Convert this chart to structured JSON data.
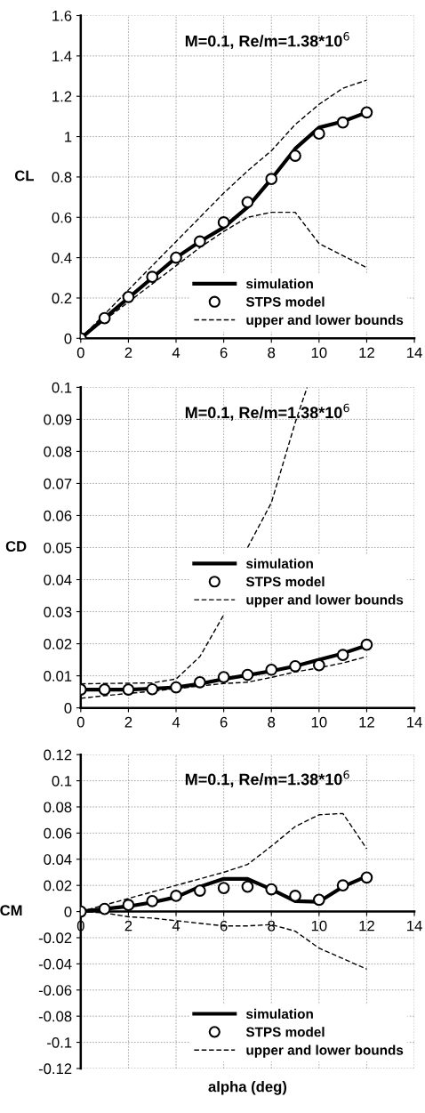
{
  "chart_data": [
    {
      "type": "line",
      "title": "M=0.1, Re/m=1.38*10$^{6}$",
      "ylabel": "CL",
      "x": [
        0,
        1,
        2,
        3,
        4,
        5,
        6,
        7,
        8,
        9,
        10,
        11,
        12
      ],
      "series": [
        {
          "name": "simulation",
          "color": "#000000",
          "marker": "none",
          "line_style": "solid",
          "values": [
            0,
            0.1,
            0.2,
            0.3,
            0.4,
            0.48,
            0.55,
            0.65,
            0.79,
            0.94,
            1.045,
            1.075,
            1.12
          ]
        },
        {
          "name": "STPS model",
          "type": "scatter",
          "color": "#000000",
          "marker": "circle",
          "values": [
            0,
            0.1,
            0.205,
            0.305,
            0.4,
            0.48,
            0.575,
            0.675,
            0.79,
            0.905,
            1.015,
            1.07,
            1.12
          ]
        },
        {
          "name": "upper and lower bounds",
          "color": "#000000",
          "marker": "none",
          "line_style": "dashed",
          "values": [
            0,
            0.12,
            0.24,
            0.36,
            0.48,
            0.6,
            0.72,
            0.83,
            0.93,
            1.06,
            1.16,
            1.24,
            1.28
          ]
        },
        {
          "color": "#000000",
          "marker": "none",
          "line_style": "dashed",
          "values": [
            0,
            0.09,
            0.18,
            0.27,
            0.36,
            0.45,
            0.53,
            0.6,
            0.625,
            0.625,
            0.47,
            0.41,
            0.35
          ]
        }
      ],
      "xlim": [
        0,
        14
      ],
      "xticks": [
        0,
        2,
        4,
        6,
        8,
        10,
        12,
        14
      ],
      "ylim": [
        0,
        1.6
      ],
      "yticks": [
        0,
        0.2,
        0.4,
        0.6,
        0.8,
        1,
        1.2,
        1.4,
        1.6
      ],
      "grid": true,
      "legend": "lower right"
    },
    {
      "type": "line",
      "title": "M=0.1, Re/m=1.38*10$^{6}$",
      "ylabel": "CD",
      "x": [
        0,
        1,
        2,
        3,
        4,
        5,
        6,
        7,
        8,
        9,
        10,
        11,
        12
      ],
      "series": [
        {
          "name": "simulation",
          "color": "#000000",
          "marker": "none",
          "line_style": "solid",
          "values": [
            0.0057,
            0.0057,
            0.0057,
            0.006,
            0.0064,
            0.0075,
            0.009,
            0.0102,
            0.0115,
            0.013,
            0.015,
            0.017,
            0.0195
          ]
        },
        {
          "name": "STPS model",
          "type": "scatter",
          "color": "#000000",
          "marker": "circle",
          "values": [
            0.0057,
            0.0057,
            0.0057,
            0.0058,
            0.0064,
            0.008,
            0.0096,
            0.0103,
            0.0119,
            0.013,
            0.0133,
            0.0165,
            0.0197
          ]
        },
        {
          "name": "upper and lower bounds",
          "color": "#000000",
          "marker": "none",
          "line_style": "dashed",
          "x": [
            0,
            1,
            2,
            3,
            4,
            5,
            6,
            6.5,
            7,
            8,
            9,
            9.5
          ],
          "values": [
            0.0075,
            0.0076,
            0.0077,
            0.0078,
            0.009,
            0.016,
            0.029,
            null,
            0.05,
            0.064,
            0.089,
            0.1
          ]
        },
        {
          "color": "#000000",
          "marker": "none",
          "line_style": "dashed",
          "values": [
            0.003,
            0.0038,
            0.0045,
            0.0052,
            0.006,
            0.0068,
            0.0076,
            0.008,
            0.0095,
            0.0112,
            0.0125,
            0.014,
            0.016
          ]
        }
      ],
      "xlim": [
        0,
        14
      ],
      "xticks": [
        0,
        2,
        4,
        6,
        8,
        10,
        12,
        14
      ],
      "ylim": [
        0,
        0.1
      ],
      "yticks": [
        0,
        0.01,
        0.02,
        0.03,
        0.04,
        0.05,
        0.06,
        0.07,
        0.08,
        0.09,
        0.1
      ],
      "grid": true,
      "legend": "center right"
    },
    {
      "type": "line",
      "title": "M=0.1, Re/m=1.38*10$^{6}$",
      "ylabel": "CM",
      "xlabel": "alpha (deg)",
      "x": [
        0,
        1,
        2,
        3,
        4,
        5,
        6,
        7,
        8,
        9,
        10,
        11,
        12
      ],
      "series": [
        {
          "name": "simulation",
          "color": "#000000",
          "marker": "none",
          "line_style": "solid",
          "values": [
            0,
            0.002,
            0.004,
            0.007,
            0.011,
            0.019,
            0.025,
            0.025,
            0.017,
            0.008,
            0.0075,
            0.019,
            0.027
          ]
        },
        {
          "name": "STPS model",
          "type": "scatter",
          "color": "#000000",
          "marker": "circle",
          "values": [
            0,
            0.002,
            0.005,
            0.008,
            0.012,
            0.016,
            0.018,
            0.019,
            0.017,
            0.012,
            0.009,
            0.02,
            0.026
          ]
        },
        {
          "name": "upper and lower bounds",
          "color": "#000000",
          "marker": "none",
          "line_style": "dashed",
          "values": [
            0,
            0.005,
            0.01,
            0.015,
            0.02,
            0.025,
            0.03,
            0.036,
            0.05,
            0.065,
            0.074,
            0.075,
            0.048
          ]
        },
        {
          "color": "#000000",
          "marker": "none",
          "line_style": "dashed",
          "values": [
            0,
            -0.001,
            -0.004,
            -0.005,
            -0.007,
            -0.009,
            -0.011,
            -0.011,
            -0.01,
            -0.015,
            -0.028,
            -0.036,
            -0.044
          ]
        }
      ],
      "xlim": [
        0,
        14
      ],
      "xticks": [
        0,
        2,
        4,
        6,
        8,
        10,
        12,
        14
      ],
      "ylim": [
        -0.12,
        0.12
      ],
      "yticks": [
        -0.12,
        -0.1,
        -0.08,
        -0.06,
        -0.04,
        -0.02,
        0,
        0.02,
        0.04,
        0.06,
        0.08,
        0.1,
        0.12
      ],
      "grid": true,
      "legend": "lower right"
    }
  ]
}
